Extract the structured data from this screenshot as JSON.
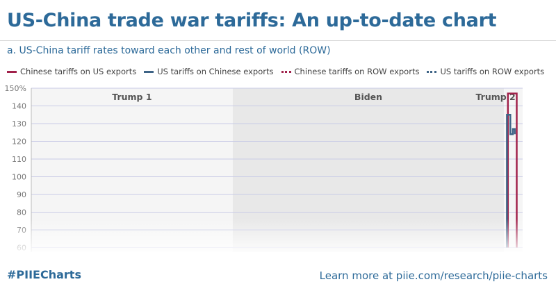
{
  "title": "US-China trade war tariffs: An up-to-date chart",
  "subtitle": "a. US-China tariff rates toward each other and rest of world (ROW)",
  "footer": {
    "hashtag": "#PIIECharts",
    "link": "Learn more at piie.com/research/piie-charts"
  },
  "chart_data": {
    "type": "line",
    "ylim": [
      60,
      150
    ],
    "y_ticks": [
      "150%",
      "140",
      "130",
      "120",
      "110",
      "100",
      "90",
      "80",
      "70",
      "60"
    ],
    "grid": true,
    "legend_position": "top",
    "eras": [
      {
        "label": "Trump 1",
        "start": 0,
        "end": 0.41,
        "shade": "#f5f5f5"
      },
      {
        "label": "Biden",
        "start": 0.41,
        "end": 0.962,
        "shade": "#e8e8e8"
      },
      {
        "label": "Trump 2",
        "start": 0.962,
        "end": 1.0,
        "shade": "#f5f5f5"
      }
    ],
    "series": [
      {
        "name": "Chinese tariffs on US exports",
        "color": "#a1224b",
        "style": "solid",
        "points": [
          [
            0.97,
            60
          ],
          [
            0.97,
            147
          ],
          [
            0.988,
            147
          ],
          [
            0.988,
            60
          ]
        ]
      },
      {
        "name": "US tariffs on Chinese exports",
        "color": "#3e6486",
        "style": "solid",
        "points": [
          [
            0.968,
            60
          ],
          [
            0.968,
            135
          ],
          [
            0.975,
            135
          ],
          [
            0.975,
            124
          ],
          [
            0.98,
            124
          ],
          [
            0.98,
            127
          ],
          [
            0.984,
            127
          ],
          [
            0.984,
            124
          ]
        ]
      },
      {
        "name": "Chinese tariffs on ROW exports",
        "color": "#a1224b",
        "style": "dotted",
        "points": []
      },
      {
        "name": "US tariffs on ROW exports",
        "color": "#3e6486",
        "style": "dotted",
        "points": []
      }
    ]
  }
}
